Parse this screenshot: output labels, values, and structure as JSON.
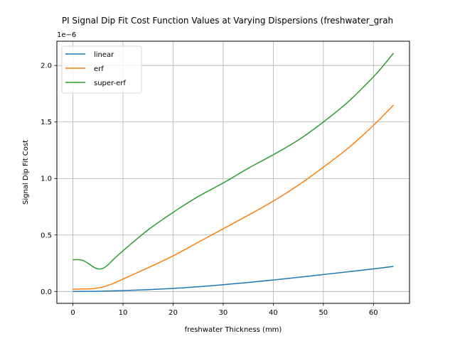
{
  "chart_data": {
    "type": "line",
    "title": "PI Signal Dip Fit Cost Function Values at Varying Dispersions (freshwater_grah",
    "xlabel": "freshwater Thickness (mm)",
    "ylabel": "Signal Dip Fit Cost",
    "y_offset_label": "1e−6",
    "xlim": [
      -3.2,
      67.2
    ],
    "ylim": [
      -0.105,
      2.215
    ],
    "x_ticks": [
      0,
      10,
      20,
      30,
      40,
      50,
      60
    ],
    "x_tick_labels": [
      "0",
      "10",
      "20",
      "30",
      "40",
      "50",
      "60"
    ],
    "y_ticks": [
      0.0,
      0.5,
      1.0,
      1.5,
      2.0
    ],
    "y_tick_labels": [
      "0.0",
      "0.5",
      "1.0",
      "1.5",
      "2.0"
    ],
    "grid": true,
    "legend_position": "top-left",
    "series": [
      {
        "name": "linear",
        "color": "#1f77b4",
        "x": [
          0,
          5,
          10,
          15,
          20,
          25,
          30,
          35,
          40,
          45,
          50,
          55,
          60,
          64
        ],
        "y": [
          0.0,
          0.002,
          0.008,
          0.016,
          0.027,
          0.042,
          0.06,
          0.08,
          0.102,
          0.125,
          0.15,
          0.175,
          0.2,
          0.222
        ]
      },
      {
        "name": "erf",
        "color": "#ff7f0e",
        "x": [
          0,
          2,
          4,
          6,
          8,
          10,
          15,
          20,
          25,
          30,
          35,
          40,
          45,
          50,
          55,
          60,
          64
        ],
        "y": [
          0.02,
          0.022,
          0.025,
          0.04,
          0.07,
          0.11,
          0.21,
          0.315,
          0.435,
          0.555,
          0.675,
          0.8,
          0.94,
          1.1,
          1.27,
          1.47,
          1.65
        ]
      },
      {
        "name": "super-erf",
        "color": "#2ca02c",
        "x": [
          0,
          1,
          2,
          3,
          4,
          5,
          6,
          7,
          8,
          10,
          15,
          20,
          25,
          30,
          35,
          40,
          45,
          50,
          55,
          60,
          62,
          64
        ],
        "y": [
          0.28,
          0.282,
          0.275,
          0.25,
          0.22,
          0.2,
          0.205,
          0.235,
          0.28,
          0.36,
          0.545,
          0.7,
          0.84,
          0.96,
          1.09,
          1.21,
          1.34,
          1.5,
          1.68,
          1.9,
          2.0,
          2.11
        ]
      }
    ]
  }
}
